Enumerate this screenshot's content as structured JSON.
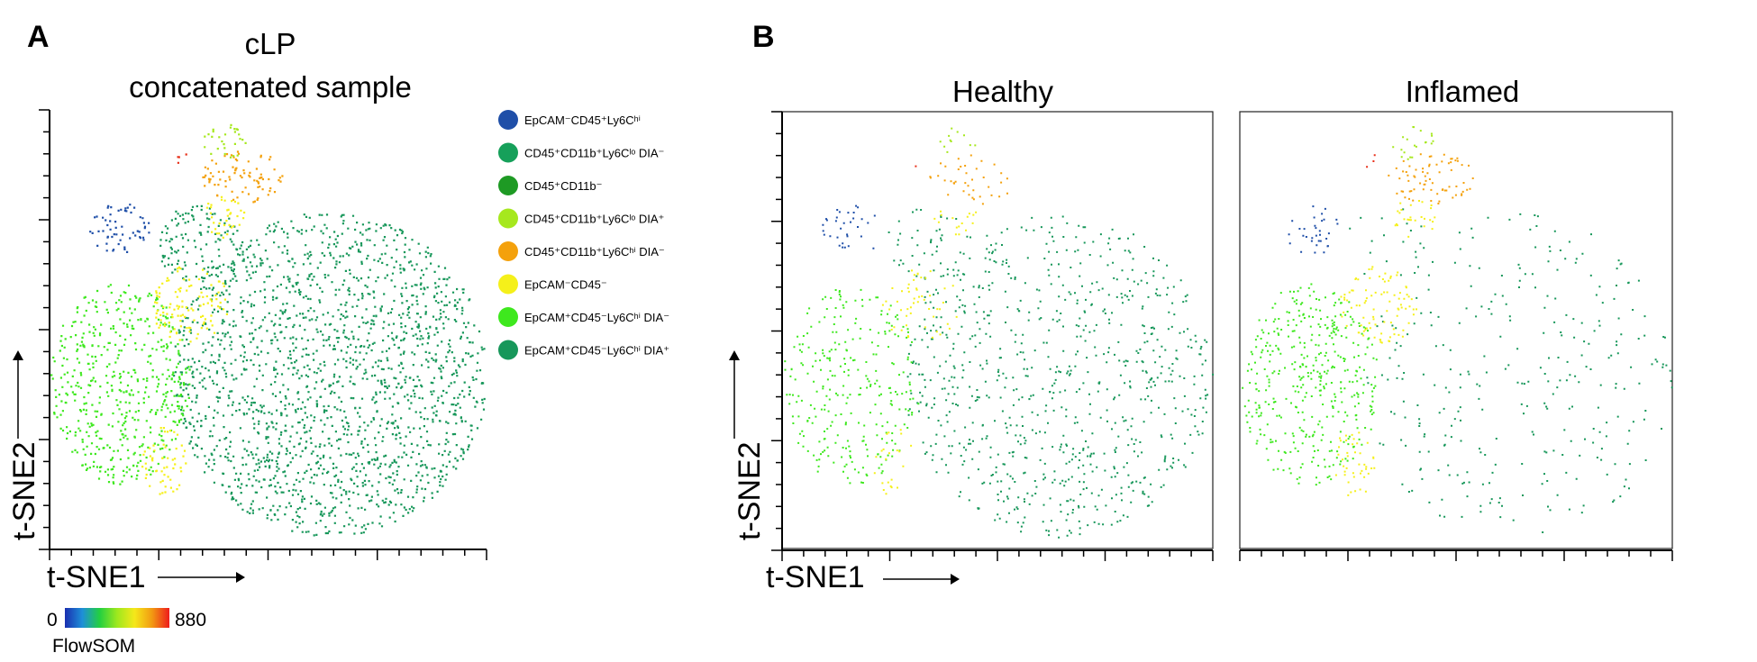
{
  "panels": {
    "a": {
      "letter": "A",
      "title_line1": "cLP",
      "title_line2": "concatenated sample",
      "xlabel": "t-SNE1",
      "ylabel": "t-SNE2"
    },
    "b": {
      "letter": "B",
      "title_healthy": "Healthy",
      "title_inflamed": "Inflamed",
      "xlabel": "t-SNE1",
      "ylabel": "t-SNE2"
    }
  },
  "legend": [
    {
      "label": "EpCAM⁻CD45⁺Ly6Cʰⁱ",
      "color": "#1f4fa8"
    },
    {
      "label": "CD45⁺CD11b⁺Ly6Cˡᵒ DIA⁻",
      "color": "#16a05a"
    },
    {
      "label": "CD45⁺CD11b⁻",
      "color": "#1e9a24"
    },
    {
      "label": "CD45⁺CD11b⁺Ly6Cˡᵒ DIA⁺",
      "color": "#a6e81e"
    },
    {
      "label": "CD45⁺CD11b⁺Ly6Cʰⁱ DIA⁻",
      "color": "#f4a10c"
    },
    {
      "label": "EpCAM⁻CD45⁻",
      "color": "#f5f01a"
    },
    {
      "label": "EpCAM⁺CD45⁻Ly6Cʰⁱ DIA⁻",
      "color": "#3ee81e"
    },
    {
      "label": "EpCAM⁺CD45⁻Ly6Cʰⁱ DIA⁺",
      "color": "#17975a"
    }
  ],
  "colorbar": {
    "min_label": "0",
    "max_label": "880",
    "title": "FlowSOM",
    "colors": [
      "#1a2fb0",
      "#1e8fd8",
      "#23d040",
      "#9ee81e",
      "#f5e81a",
      "#f29a12",
      "#ee1c1c"
    ]
  },
  "chart_data": [
    {
      "type": "scatter",
      "title": "cLP concatenated sample",
      "xlabel": "t-SNE1",
      "ylabel": "t-SNE2",
      "series": [
        {
          "name": "EpCAM⁺CD45⁻Ly6Cʰⁱ DIA⁺",
          "color": "#17975a"
        },
        {
          "name": "EpCAM⁺CD45⁻Ly6Cʰⁱ DIA⁻",
          "color": "#3ee81e"
        },
        {
          "name": "EpCAM⁻CD45⁻",
          "color": "#f5f01a"
        },
        {
          "name": "EpCAM⁻CD45⁺Ly6Cʰⁱ",
          "color": "#1f4fa8"
        },
        {
          "name": "CD45⁺CD11b⁺Ly6Cʰⁱ DIA⁻",
          "color": "#f4a10c"
        },
        {
          "name": "CD45⁺CD11b⁺Ly6Cˡᵒ DIA⁺",
          "color": "#a6e81e"
        }
      ]
    },
    {
      "type": "scatter",
      "title": "Healthy",
      "xlabel": "t-SNE1",
      "ylabel": "t-SNE2"
    },
    {
      "type": "scatter",
      "title": "Inflamed"
    }
  ]
}
